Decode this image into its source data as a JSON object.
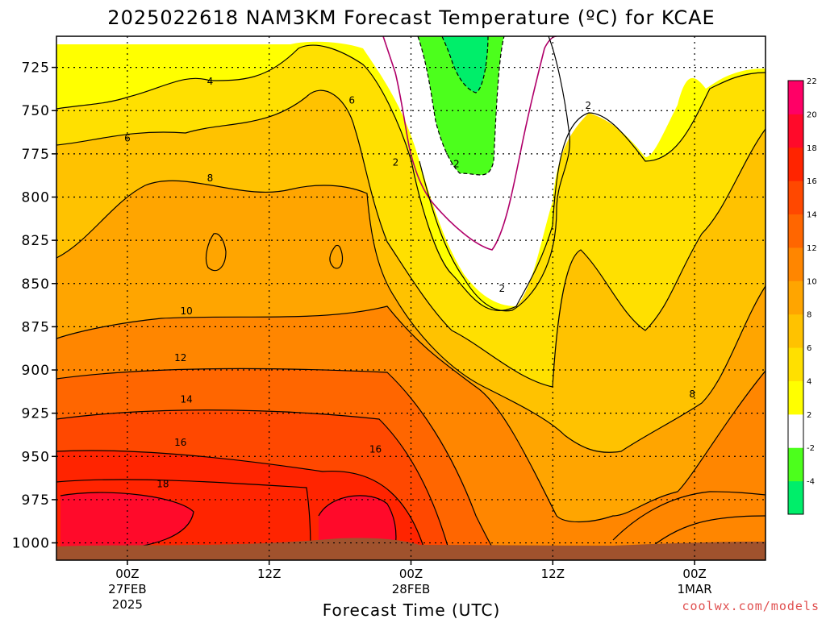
{
  "title": "2025022618 NAM3KM Forecast Temperature (ºC) for KCAE",
  "credit": "coolwx.com/models",
  "chart_data": {
    "type": "heatmap",
    "title": "2025022618 NAM3KM Forecast Temperature (ºC) for KCAE",
    "xlabel": "Forecast Time (UTC)",
    "ylabel": "",
    "x_ticks": [
      {
        "label": "00Z",
        "sub1": "27FEB",
        "sub2": "2025",
        "hour": 6
      },
      {
        "label": "12Z",
        "sub1": "",
        "sub2": "",
        "hour": 18
      },
      {
        "label": "00Z",
        "sub1": "28FEB",
        "sub2": "",
        "hour": 30
      },
      {
        "label": "12Z",
        "sub1": "",
        "sub2": "",
        "hour": 42
      },
      {
        "label": "00Z",
        "sub1": "1MAR",
        "sub2": "",
        "hour": 54
      }
    ],
    "x_range_hours": [
      0,
      60
    ],
    "y_ticks": [
      725,
      750,
      775,
      800,
      825,
      850,
      875,
      900,
      925,
      950,
      975,
      1000
    ],
    "y_range_hPa": [
      707,
      1010
    ],
    "y_inverted": true,
    "grid": true,
    "colorbar": {
      "levels": [
        -4,
        -2,
        2,
        4,
        6,
        8,
        10,
        12,
        14,
        16,
        18,
        20,
        22
      ],
      "colors": [
        "#00ee6a",
        "#4cff1c",
        "#ffffff",
        "#ffff00",
        "#ffe000",
        "#ffc200",
        "#ffa500",
        "#ff8600",
        "#ff6600",
        "#ff4800",
        "#ff2400",
        "#ff0a2a",
        "#ff0066"
      ]
    },
    "contour_labels": [
      {
        "text": "4",
        "hour": 13.0,
        "p": 733
      },
      {
        "text": "6",
        "hour": 25.0,
        "p": 744
      },
      {
        "text": "6",
        "hour": 6.0,
        "p": 766
      },
      {
        "text": "8",
        "hour": 13.0,
        "p": 789
      },
      {
        "text": "2",
        "hour": 28.7,
        "p": 780
      },
      {
        "text": "-2",
        "hour": 33.7,
        "p": 781
      },
      {
        "text": "2",
        "hour": 45.0,
        "p": 747
      },
      {
        "text": "2",
        "hour": 37.7,
        "p": 853
      },
      {
        "text": "10",
        "hour": 11.0,
        "p": 866
      },
      {
        "text": "12",
        "hour": 10.5,
        "p": 893
      },
      {
        "text": "14",
        "hour": 11.0,
        "p": 917
      },
      {
        "text": "16",
        "hour": 10.5,
        "p": 942
      },
      {
        "text": "16",
        "hour": 27.0,
        "p": 946
      },
      {
        "text": "18",
        "hour": 9.0,
        "p": 966
      },
      {
        "text": "8",
        "hour": 53.8,
        "p": 914
      }
    ]
  }
}
